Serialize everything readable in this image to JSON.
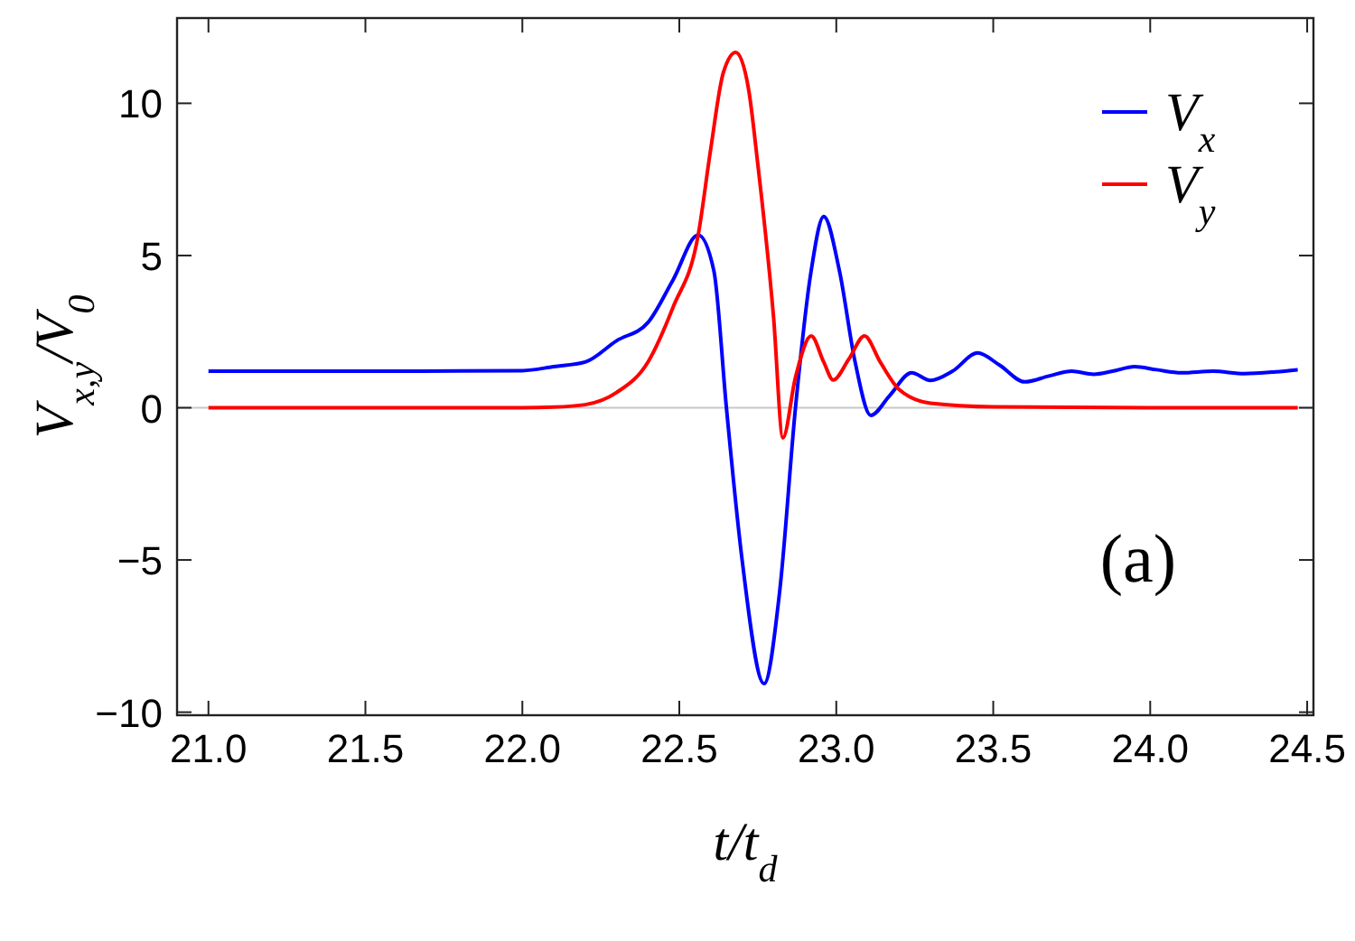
{
  "chart_data": {
    "type": "line",
    "xlabel": "t/t$_{d}$",
    "ylabel": "V$_{x,y}$/V$_{0}$",
    "xlim": [
      20.9,
      24.52
    ],
    "ylim": [
      -10.1,
      12.8
    ],
    "xticks": [
      {
        "value": 21,
        "label": "21.0"
      },
      {
        "value": 21.5,
        "label": "21.5"
      },
      {
        "value": 22,
        "label": "22.0"
      },
      {
        "value": 22.5,
        "label": "22.5"
      },
      {
        "value": 23,
        "label": "23.0"
      },
      {
        "value": 23.5,
        "label": "23.5"
      },
      {
        "value": 24,
        "label": "24.0"
      },
      {
        "value": 24.5,
        "label": "24.5"
      }
    ],
    "yticks": [
      -10,
      -5,
      0,
      5,
      10
    ],
    "ref_lines": [
      {
        "axis": "y",
        "value": 0,
        "color": "#c8c8c8"
      }
    ],
    "legend": "top right",
    "grid": false,
    "marker": "none",
    "line_style": "solid",
    "annotations": [
      "(a)"
    ],
    "series": [
      {
        "name": "V$_{x}$",
        "color": "#0000ff",
        "x": [
          21.0,
          21.5,
          22.0,
          22.1,
          22.2,
          22.3,
          22.4,
          22.48,
          22.56,
          22.61,
          22.65,
          22.7,
          22.77,
          22.82,
          22.87,
          22.92,
          22.96,
          23.01,
          23.06,
          23.11,
          23.17,
          23.24,
          23.3,
          23.37,
          23.45,
          23.52,
          23.6,
          23.68,
          23.75,
          23.82,
          23.88,
          23.95,
          24.02,
          24.1,
          24.2,
          24.3,
          24.4,
          24.47
        ],
        "values": [
          1.2,
          1.2,
          1.22,
          1.35,
          1.5,
          2.2,
          2.8,
          4.2,
          5.67,
          4.5,
          0,
          -5,
          -9.06,
          -6,
          0,
          4.5,
          6.28,
          4.5,
          1.5,
          -0.25,
          0.4,
          1.15,
          0.9,
          1.2,
          1.8,
          1.4,
          0.85,
          1.05,
          1.2,
          1.1,
          1.2,
          1.35,
          1.25,
          1.15,
          1.2,
          1.12,
          1.18,
          1.25
        ]
      },
      {
        "name": "V$_{y}$",
        "color": "#ff0000",
        "x": [
          21.0,
          21.5,
          22.0,
          22.1,
          22.2,
          22.3,
          22.4,
          22.48,
          22.56,
          22.6,
          22.64,
          22.68,
          22.72,
          22.75,
          22.8,
          22.83,
          22.87,
          22.92,
          22.96,
          22.99,
          23.04,
          23.09,
          23.14,
          23.2,
          23.3,
          23.5,
          24.0,
          24.47
        ],
        "values": [
          0,
          0,
          0,
          0.02,
          0.1,
          0.5,
          1.5,
          3.3,
          5.67,
          8.5,
          11,
          11.67,
          10.5,
          8,
          3,
          -0.99,
          1,
          2.36,
          1.5,
          0.91,
          1.6,
          2.36,
          1.5,
          0.6,
          0.15,
          0.03,
          0,
          0
        ]
      }
    ]
  }
}
